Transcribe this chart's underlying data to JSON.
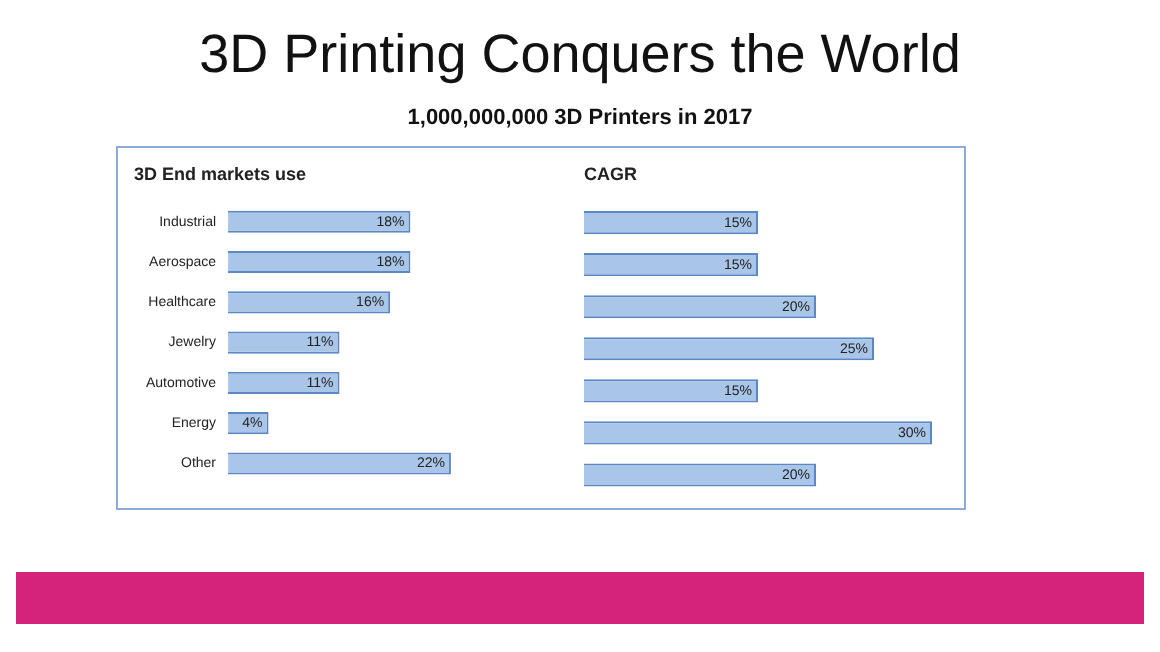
{
  "chart_data": [
    {
      "type": "bar",
      "orientation": "horizontal",
      "title": "3D End markets use",
      "annotations": [
        "3D Printing Conquers the World",
        "1,000,000,000 3D Printers in 2017"
      ],
      "categories": [
        "Industrial",
        "Aerospace",
        "Healthcare",
        "Jewelry",
        "Automotive",
        "Energy",
        "Other"
      ],
      "values": [
        18,
        18,
        16,
        11,
        11,
        4,
        22
      ],
      "value_labels": [
        "18%",
        "18%",
        "16%",
        "11%",
        "11%",
        "4%",
        "22%"
      ],
      "color": "#a9c6e8",
      "tick_labels": "y",
      "grid": false,
      "legend": false
    },
    {
      "type": "bar",
      "orientation": "horizontal",
      "title": "CAGR",
      "categories": [
        null,
        null,
        null,
        null,
        null,
        null,
        null
      ],
      "values": [
        15,
        15,
        20,
        25,
        15,
        30,
        20
      ],
      "value_labels": [
        "15%",
        "15%",
        "20%",
        "25%",
        "15%",
        "30%",
        "20%"
      ],
      "color": "#a9c6e8",
      "tick_labels": false,
      "grid": false,
      "legend": false
    }
  ]
}
